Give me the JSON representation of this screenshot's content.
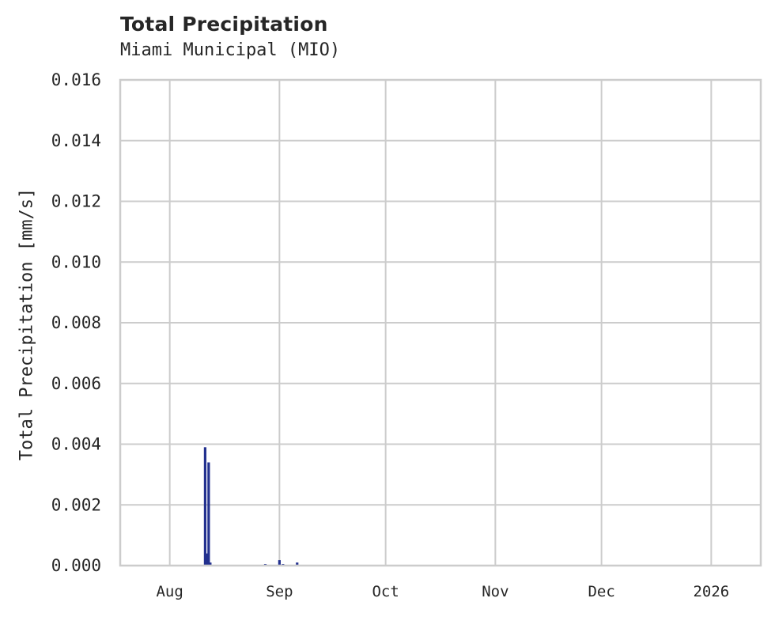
{
  "header": {
    "title": "Total Precipitation",
    "subtitle": "Miami Municipal (MIO)"
  },
  "axes": {
    "ylabel": "Total Precipitation [mm/s]",
    "yticks": [
      "0.000",
      "0.002",
      "0.004",
      "0.006",
      "0.008",
      "0.010",
      "0.012",
      "0.014",
      "0.016"
    ],
    "xticks": [
      "Aug",
      "Sep",
      "Oct",
      "Nov",
      "Dec",
      "2026"
    ]
  },
  "colors": {
    "series": "#23318f",
    "grid": "#cccccc",
    "text": "#262626"
  },
  "chart_data": {
    "type": "bar",
    "title": "Total Precipitation",
    "subtitle": "Miami Municipal (MIO)",
    "xlabel": "",
    "ylabel": "Total Precipitation [mm/s]",
    "ylim": [
      0,
      0.016
    ],
    "xlim": [
      "2025-07-18",
      "2026-01-15"
    ],
    "grid": true,
    "legend": null,
    "x_tick_labels": [
      "Aug",
      "Sep",
      "Oct",
      "Nov",
      "Dec",
      "2026"
    ],
    "y_tick_labels": [
      "0.000",
      "0.002",
      "0.004",
      "0.006",
      "0.008",
      "0.010",
      "0.012",
      "0.014",
      "0.016"
    ],
    "series": [
      {
        "name": "Total Precipitation",
        "color": "#23318f",
        "points": [
          {
            "x": "2025-08-11",
            "y": 0.0039
          },
          {
            "x": "2025-08-11",
            "y": 0.0004
          },
          {
            "x": "2025-08-12",
            "y": 0.0034
          },
          {
            "x": "2025-08-12",
            "y": 0.0001
          },
          {
            "x": "2025-08-28",
            "y": 5e-05
          },
          {
            "x": "2025-09-01",
            "y": 0.00018
          },
          {
            "x": "2025-09-02",
            "y": 5e-05
          },
          {
            "x": "2025-09-06",
            "y": 0.0001
          }
        ]
      }
    ]
  }
}
